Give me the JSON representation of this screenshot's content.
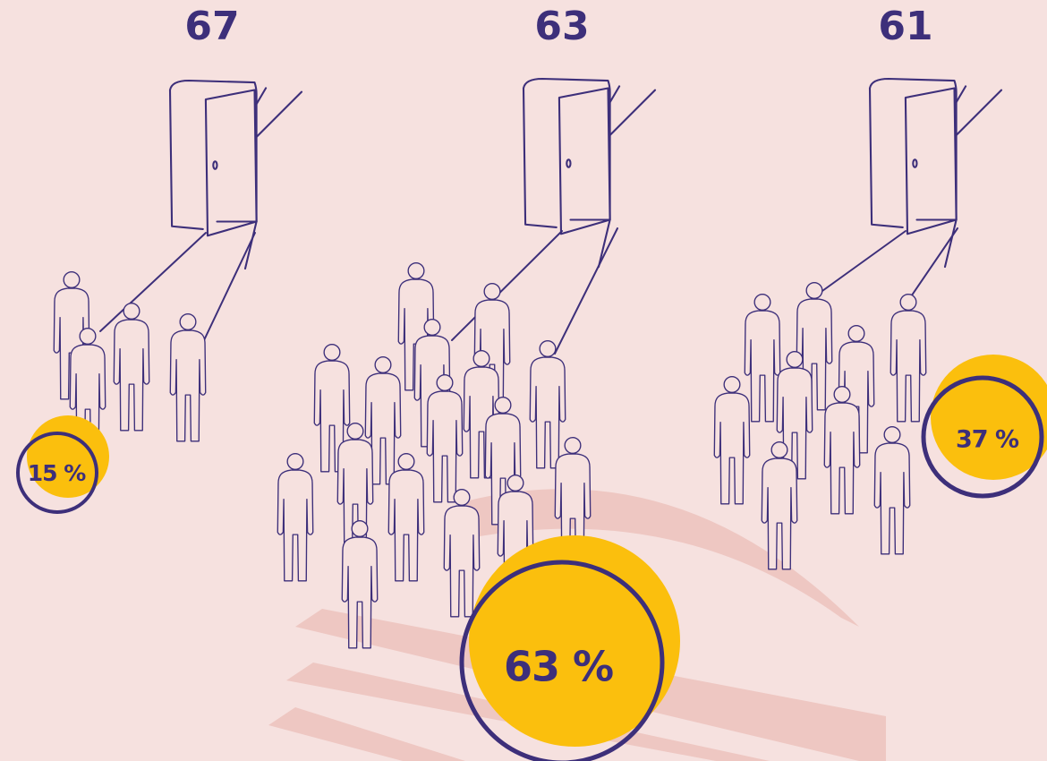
{
  "groups": [
    {
      "age": "67",
      "share": "15 %"
    },
    {
      "age": "63",
      "share": "63 %"
    },
    {
      "age": "61",
      "share": "37 %"
    }
  ]
}
